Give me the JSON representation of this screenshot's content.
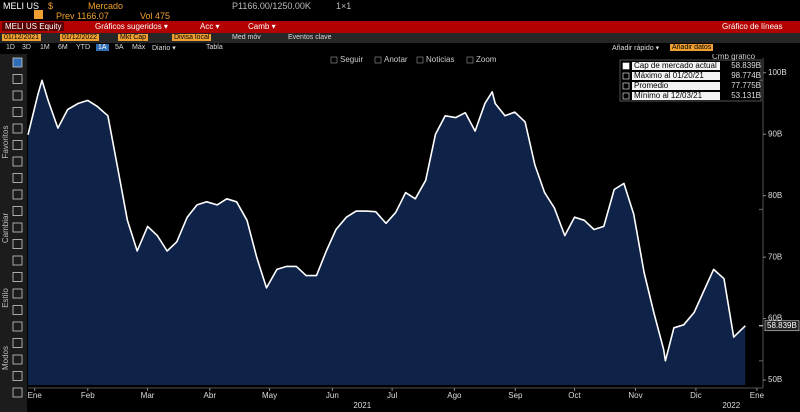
{
  "top_bar": {
    "ticker": "MELI US",
    "currency": "$",
    "market": "Mercado",
    "prev": "Prev 1166.07",
    "vol": "Vol 475",
    "quote": "P1166.00/1250.00K",
    "size": "1×1"
  },
  "menu_bar": {
    "security": "MELI US Equity",
    "items": [
      "Gráficos sugeridos ▾",
      "Acc ▾",
      "Camb ▾"
    ],
    "chart_kind": "Gráfico de líneas"
  },
  "settings_bar": {
    "start": "01/12/2021",
    "end": "01/12/2022",
    "field": "Mkt Cap",
    "currency": "Divisa local",
    "moving_avg": "Med móv",
    "events": "Eventos clave"
  },
  "period_bar": {
    "periods": [
      "1D",
      "3D",
      "1M",
      "6M",
      "YTD",
      "1A",
      "5A",
      "Máx"
    ],
    "frequency": "Diario ▾",
    "table": "Tabla",
    "quick_add": "Añadir rápido ▾",
    "add_data": "Añadir datos"
  },
  "chart_tools": [
    "Seguir",
    "Anotar",
    "Noticias",
    "Zoom"
  ],
  "chart_change": "Cmb gráfico",
  "side_panel": [
    "Favoritos",
    "Cambiar",
    "Estilo",
    "Modos"
  ],
  "chart_data": {
    "type": "line",
    "stats": [
      {
        "label": "Cap de mercado actual",
        "value": 58.839,
        "value_label": "58.839B"
      },
      {
        "label": "Máximo al 01/20/21",
        "value": 98.774,
        "value_label": "98.774B"
      },
      {
        "label": "Promedio",
        "value": 77.775,
        "value_label": "77.775B"
      },
      {
        "label": "Mínimo al 12/03/21",
        "value": 53.131,
        "value_label": "53.131B"
      }
    ],
    "x": [
      0.37,
      0.53,
      0.6,
      0.7,
      0.86,
      1.02,
      1.19,
      1.35,
      1.51,
      1.68,
      1.84,
      2.0,
      2.16,
      2.33,
      2.49,
      2.65,
      2.81,
      2.98,
      3.14,
      3.3,
      3.47,
      3.63,
      3.79,
      3.96,
      4.12,
      4.28,
      4.45,
      4.61,
      4.77,
      4.93,
      5.1,
      5.26,
      5.42,
      5.59,
      5.75,
      5.91,
      6.07,
      6.24,
      6.4,
      6.56,
      6.72,
      6.89,
      7.05,
      7.21,
      7.38,
      7.54,
      7.7,
      7.86,
      7.98,
      8.03,
      8.19,
      8.35,
      8.52,
      8.68,
      8.84,
      9.0,
      9.17,
      9.33,
      9.49,
      9.65,
      9.81,
      9.98,
      10.14,
      10.3,
      10.47,
      10.63,
      10.79,
      10.82,
      10.96,
      11.12,
      11.29,
      11.45,
      11.61,
      11.78,
      11.94,
      12.13
    ],
    "series": [
      {
        "color": "#ffffff",
        "area_color": "#0f2247",
        "values": [
          89.9,
          96.4,
          98.774,
          95.5,
          91,
          94,
          95,
          95.5,
          94.5,
          93,
          84.5,
          76,
          71,
          75,
          73.5,
          71,
          72.5,
          76.5,
          78.5,
          79,
          78.5,
          79.5,
          79,
          76,
          70,
          65,
          68,
          68.5,
          68.5,
          67,
          67,
          71,
          74.5,
          76.5,
          77.5,
          77.5,
          77.4,
          75.5,
          77.3,
          80.5,
          79.5,
          82.5,
          90,
          93,
          92.7,
          93.5,
          90.5,
          95,
          96.9,
          95,
          93,
          93.6,
          92,
          85,
          80.5,
          78,
          73.5,
          76.5,
          76,
          74.5,
          75,
          81,
          82,
          77,
          67.5,
          61,
          55,
          53.131,
          58.5,
          59,
          61,
          64.5,
          68,
          66.5,
          57,
          58.839
        ]
      }
    ],
    "xlim": [
      0.37,
      12.42
    ],
    "xticks": [
      {
        "value": 0.48,
        "label": "Ene"
      },
      {
        "value": 1.35,
        "label": "Feb"
      },
      {
        "value": 2.33,
        "label": "Mar"
      },
      {
        "value": 3.35,
        "label": "Abr"
      },
      {
        "value": 4.33,
        "label": "May"
      },
      {
        "value": 5.36,
        "label": "Jun"
      },
      {
        "value": 6.34,
        "label": "Jul"
      },
      {
        "value": 7.36,
        "label": "Ago"
      },
      {
        "value": 8.36,
        "label": "Sep"
      },
      {
        "value": 9.33,
        "label": "Oct"
      },
      {
        "value": 10.33,
        "label": "Nov"
      },
      {
        "value": 11.32,
        "label": "Dic"
      },
      {
        "value": 12.32,
        "label": "Ene"
      }
    ],
    "x_groups": [
      {
        "value": 5.85,
        "label": "2021"
      },
      {
        "value": 11.9,
        "label": "2022"
      }
    ],
    "ylim": [
      49.2,
      102.4
    ],
    "yticks": [
      {
        "value": 50,
        "label": "50B"
      },
      {
        "value": 60,
        "label": "60B"
      },
      {
        "value": 70,
        "label": "70B"
      },
      {
        "value": 80,
        "label": "80B"
      },
      {
        "value": 90,
        "label": "90B"
      },
      {
        "value": 100,
        "label": "100B"
      }
    ]
  }
}
